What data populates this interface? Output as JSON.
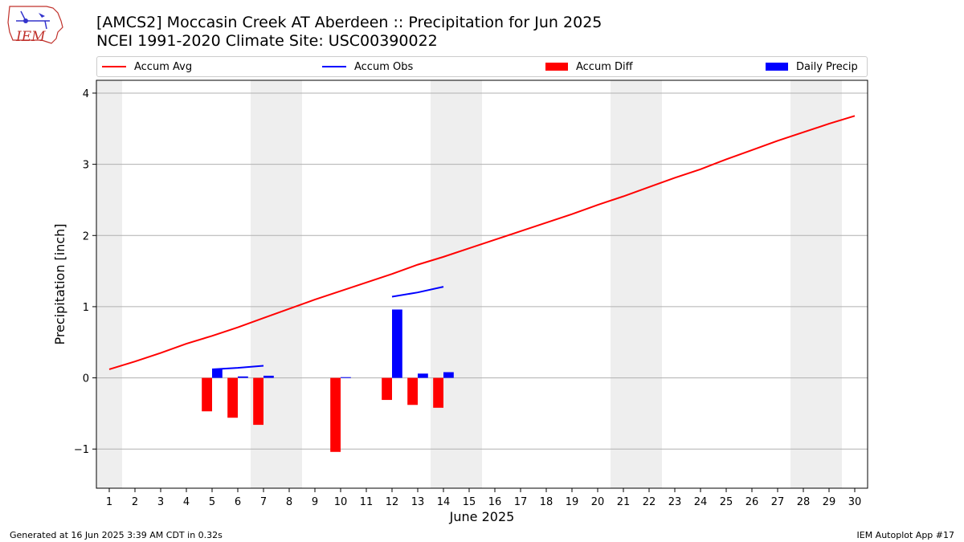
{
  "title_line1": "[AMCS2] Moccasin Creek  AT Aberdeen :: Precipitation for Jun 2025",
  "title_line2": "NCEI 1991-2020 Climate Site: USC00390022",
  "logo_text": "IEM",
  "legend": {
    "accum_avg": "Accum Avg",
    "accum_obs": "Accum Obs",
    "accum_diff": "Accum Diff",
    "daily_precip": "Daily Precip"
  },
  "colors": {
    "avg": "#ff0000",
    "obs": "#0000ff",
    "diff": "#ff0000",
    "daily": "#0000ff",
    "weekend": "#eeeeee",
    "grid": "#b0b0b0"
  },
  "footer_left": "Generated at 16 Jun 2025 3:39 AM CDT in 0.32s",
  "footer_right": "IEM Autoplot App #17",
  "chart_data": {
    "type": "bar",
    "title": "[AMCS2] Moccasin Creek  AT Aberdeen :: Precipitation for Jun 2025",
    "xlabel": "June 2025",
    "ylabel": "Precipitation [inch]",
    "xlim": [
      0.5,
      30.5
    ],
    "ylim": [
      -1.55,
      4.18
    ],
    "yticks": [
      -1,
      0,
      1,
      2,
      3,
      4
    ],
    "ytick_labels": [
      "−1",
      "0",
      "1",
      "2",
      "3",
      "4"
    ],
    "xticks": [
      1,
      2,
      3,
      4,
      5,
      6,
      7,
      8,
      9,
      10,
      11,
      12,
      13,
      14,
      15,
      16,
      17,
      18,
      19,
      20,
      21,
      22,
      23,
      24,
      25,
      26,
      27,
      28,
      29,
      30
    ],
    "grid": "y",
    "legend_position": "top",
    "weekend_spans": [
      [
        0.5,
        1.5
      ],
      [
        6.5,
        8.5
      ],
      [
        13.5,
        15.5
      ],
      [
        20.5,
        22.5
      ],
      [
        27.5,
        29.5
      ]
    ],
    "series": [
      {
        "name": "Accum Avg",
        "type": "line",
        "x": [
          1,
          2,
          3,
          4,
          5,
          6,
          7,
          8,
          9,
          10,
          11,
          12,
          13,
          14,
          15,
          16,
          17,
          18,
          19,
          20,
          21,
          22,
          23,
          24,
          25,
          26,
          27,
          28,
          29,
          30
        ],
        "values": [
          0.12,
          0.23,
          0.35,
          0.48,
          0.59,
          0.71,
          0.84,
          0.97,
          1.1,
          1.22,
          1.34,
          1.46,
          1.59,
          1.7,
          1.82,
          1.94,
          2.06,
          2.18,
          2.3,
          2.43,
          2.55,
          2.68,
          2.81,
          2.93,
          3.07,
          3.2,
          3.33,
          3.45,
          3.57,
          3.68
        ]
      },
      {
        "name": "Accum Obs",
        "type": "line",
        "segments": [
          {
            "x": [
              5,
              6,
              7
            ],
            "values": [
              0.12,
              0.14,
              0.17
            ]
          },
          {
            "x": [
              12,
              13,
              14
            ],
            "values": [
              1.14,
              1.2,
              1.28
            ]
          }
        ]
      },
      {
        "name": "Accum Diff",
        "type": "bar",
        "x": [
          5,
          6,
          7,
          10,
          12,
          13,
          14
        ],
        "values": [
          -0.47,
          -0.56,
          -0.66,
          -1.04,
          -0.31,
          -0.38,
          -0.42
        ]
      },
      {
        "name": "Daily Precip",
        "type": "bar",
        "x": [
          5,
          6,
          7,
          10,
          12,
          13,
          14
        ],
        "values": [
          0.12,
          0.02,
          0.03,
          0.01,
          0.96,
          0.06,
          0.08
        ]
      }
    ]
  }
}
